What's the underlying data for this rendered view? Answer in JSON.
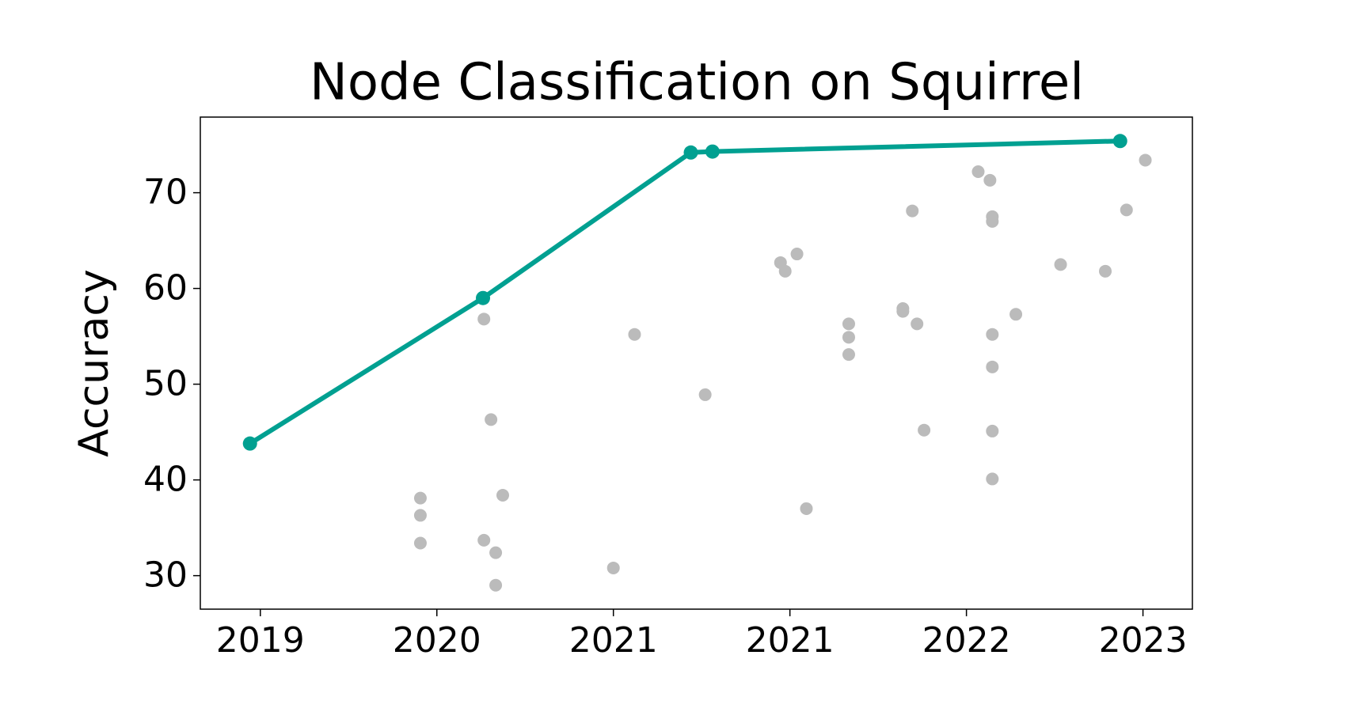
{
  "chart_data": {
    "type": "scatter",
    "title": "Node Classification on Squirrel",
    "y_label": "Accuracy",
    "xlim": [
      2019.345,
      2023.56
    ],
    "xticks": [
      {
        "value": 2019.6,
        "label": "2019"
      },
      {
        "value": 2020.35,
        "label": "2020"
      },
      {
        "value": 2021.1,
        "label": "2021"
      },
      {
        "value": 2021.85,
        "label": "2021"
      },
      {
        "value": 2022.6,
        "label": "2022"
      },
      {
        "value": 2023.35,
        "label": "2023"
      }
    ],
    "ylim": [
      26.5,
      77.9
    ],
    "yticks": [
      30,
      40,
      50,
      60,
      70
    ],
    "grid": false,
    "series": [
      {
        "color": "#bbbbbb",
        "line": false,
        "x": [
          2020.28,
          2020.28,
          2020.28,
          2020.55,
          2020.58,
          2020.63,
          2020.55,
          2020.6,
          2020.6,
          2021.19,
          2021.1,
          2021.49,
          2021.81,
          2021.83,
          2021.88,
          2021.92,
          2022.1,
          2022.1,
          2022.1,
          2022.33,
          2022.33,
          2022.37,
          2022.39,
          2022.42,
          2022.65,
          2022.7,
          2022.71,
          2022.71,
          2022.71,
          2022.71,
          2022.71,
          2022.71,
          2022.81,
          2023.0,
          2023.19,
          2023.28,
          2023.36
        ],
        "values": [
          38.1,
          36.3,
          33.4,
          56.8,
          46.3,
          38.4,
          33.7,
          32.4,
          29.0,
          55.2,
          30.8,
          48.9,
          62.7,
          61.8,
          63.6,
          37.0,
          56.3,
          54.9,
          53.1,
          57.9,
          57.6,
          68.1,
          56.3,
          45.2,
          72.2,
          71.3,
          67.5,
          67.0,
          55.2,
          51.8,
          45.1,
          40.1,
          57.3,
          62.5,
          61.8,
          68.2,
          73.4
        ]
      },
      {
        "color": "#00a091",
        "line": true,
        "x": [
          2019.556,
          2020.546,
          2021.429,
          2021.521,
          2023.253
        ],
        "values": [
          43.8,
          59.0,
          74.2,
          74.3,
          75.4
        ]
      }
    ]
  }
}
